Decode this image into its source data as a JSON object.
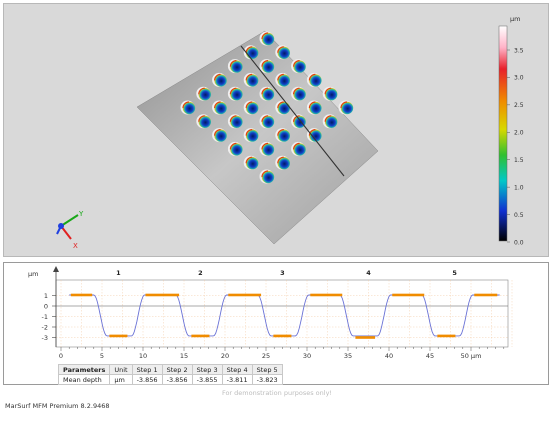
{
  "view3d": {
    "colorbar": {
      "unit": "µm",
      "ticks": [
        "3.5",
        "3.0",
        "2.5",
        "2.0",
        "1.5",
        "1.0",
        "0.5",
        "0.0"
      ]
    },
    "axes": {
      "x": "X",
      "y": "Y"
    },
    "surface_color": "#a8a8a8"
  },
  "profile": {
    "y_unit": "µm",
    "x_unit": "µm",
    "step_markers": [
      "1",
      "2",
      "3",
      "4",
      "5"
    ],
    "yticks": [
      "1",
      "0",
      "-1",
      "-2",
      "-3"
    ],
    "xticks": [
      "0",
      "5",
      "10",
      "15",
      "20",
      "25",
      "30",
      "35",
      "40",
      "45",
      "50 µm"
    ],
    "curve_color": "#6b73d6",
    "segment_color": "#f08c00"
  },
  "table": {
    "header": [
      "Parameters",
      "Unit",
      "Step 1",
      "Step 2",
      "Step 3",
      "Step 4",
      "Step 5"
    ],
    "rows": [
      [
        "Mean depth",
        "µm",
        "-3.856",
        "-3.856",
        "-3.855",
        "-3.811",
        "-3.823"
      ]
    ]
  },
  "footer": {
    "demo_note": "For demonstration purposes only!",
    "app_title": "MarSurf MFM Premium 8.2.9468"
  }
}
